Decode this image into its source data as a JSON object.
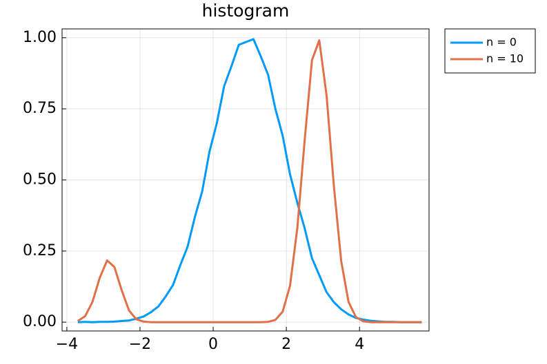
{
  "chart_data": {
    "type": "line",
    "title": "histogram",
    "x": [
      -3.7,
      -3.5,
      -3.3,
      -3.1,
      -2.9,
      -2.7,
      -2.5,
      -2.3,
      -2.1,
      -1.9,
      -1.7,
      -1.5,
      -1.3,
      -1.1,
      -0.9,
      -0.7,
      -0.5,
      -0.3,
      -0.1,
      0.1,
      0.3,
      0.5,
      0.7,
      0.9,
      1.1,
      1.3,
      1.5,
      1.7,
      1.9,
      2.1,
      2.3,
      2.5,
      2.7,
      2.9,
      3.1,
      3.3,
      3.5,
      3.7,
      3.9,
      4.1,
      4.3,
      4.5,
      4.7,
      4.9,
      5.1,
      5.3,
      5.5,
      5.7
    ],
    "series": [
      {
        "name": "n = 0",
        "color": "#009af9",
        "values": [
          0,
          0.001,
          0,
          0.001,
          0.001,
          0.002,
          0.004,
          0.006,
          0.012,
          0.02,
          0.035,
          0.055,
          0.09,
          0.13,
          0.2,
          0.265,
          0.37,
          0.46,
          0.6,
          0.7,
          0.83,
          0.9,
          0.975,
          0.985,
          0.995,
          0.935,
          0.87,
          0.75,
          0.655,
          0.52,
          0.42,
          0.33,
          0.225,
          0.165,
          0.105,
          0.07,
          0.045,
          0.027,
          0.015,
          0.009,
          0.005,
          0.003,
          0.001,
          0.001,
          0,
          0,
          0,
          0
        ]
      },
      {
        "name": "n = 10",
        "color": "#e26f46",
        "values": [
          0.004,
          0.021,
          0.071,
          0.156,
          0.217,
          0.194,
          0.112,
          0.041,
          0.01,
          0.002,
          0,
          0,
          0,
          0,
          0,
          0,
          0,
          0,
          0,
          0,
          0,
          0,
          0,
          0,
          0,
          0,
          0.001,
          0.008,
          0.037,
          0.128,
          0.331,
          0.639,
          0.921,
          0.991,
          0.796,
          0.477,
          0.214,
          0.071,
          0.018,
          0.003,
          0,
          0,
          0,
          0,
          0,
          0,
          0,
          0
        ]
      }
    ],
    "xlim": [
      -4.13,
      5.9
    ],
    "ylim": [
      -0.031,
      1.031
    ],
    "xticks": [
      {
        "value": -4,
        "label": "−4"
      },
      {
        "value": -2,
        "label": "−2"
      },
      0,
      2,
      4
    ],
    "yticks": [
      {
        "value": 0,
        "label": "0.00"
      },
      {
        "value": 0.25,
        "label": "0.25"
      },
      {
        "value": 0.5,
        "label": "0.50"
      },
      {
        "value": 0.75,
        "label": "0.75"
      },
      {
        "value": 1,
        "label": "1.00"
      }
    ],
    "grid": true,
    "legend": "outside-top-right"
  }
}
